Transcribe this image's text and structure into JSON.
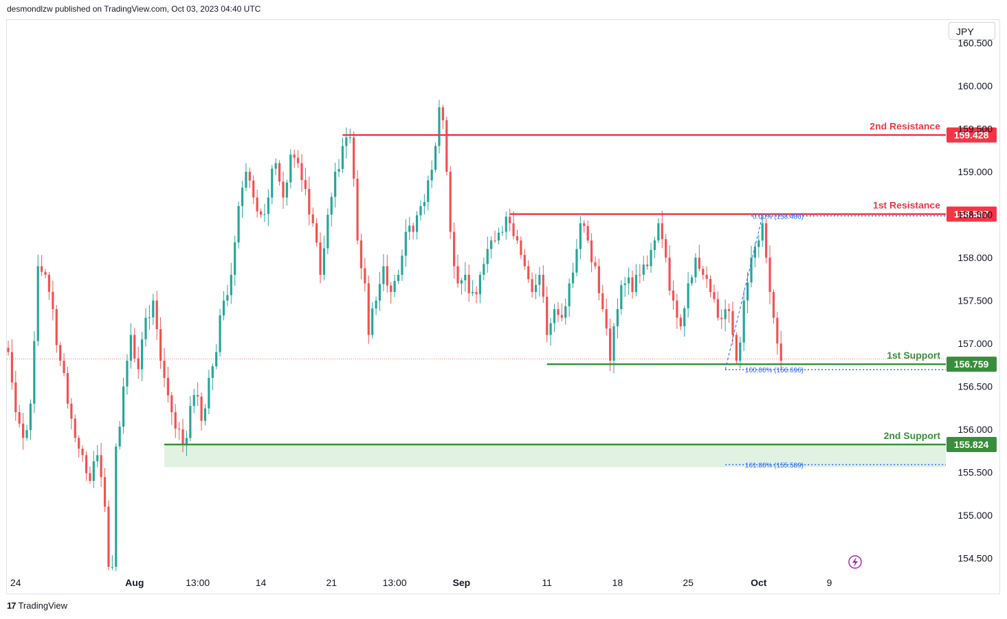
{
  "header": {
    "publisher_text": "desmondlzw published on TradingView.com, Oct 03, 2023 04:40 UTC"
  },
  "currency": "JPY",
  "footer": {
    "brand": "TradingView",
    "logo_icon": "tradingview-logo-icon"
  },
  "colors": {
    "up": "#26a69a",
    "down": "#ef5350",
    "resistance": "#f23645",
    "support": "#388e3c",
    "fib": "#2962ff",
    "zone": "#e1f2e3"
  },
  "chart_data": {
    "type": "candlestick",
    "ylim": [
      154.3,
      160.8
    ],
    "y_ticks": [
      {
        "value": 154.5,
        "label": "154.500"
      },
      {
        "value": 155.0,
        "label": "155.000"
      },
      {
        "value": 155.5,
        "label": "155.500"
      },
      {
        "value": 156.0,
        "label": "156.000"
      },
      {
        "value": 156.5,
        "label": "156.500"
      },
      {
        "value": 157.0,
        "label": "157.000"
      },
      {
        "value": 157.5,
        "label": "157.500"
      },
      {
        "value": 158.0,
        "label": "158.000"
      },
      {
        "value": 158.5,
        "label": "158.500"
      },
      {
        "value": 159.0,
        "label": "159.000"
      },
      {
        "value": 159.5,
        "label": "159.500"
      },
      {
        "value": 160.0,
        "label": "160.000"
      },
      {
        "value": 160.5,
        "label": "160.500"
      }
    ],
    "x_ticks": [
      {
        "index": 2,
        "label": "24",
        "bold": false
      },
      {
        "index": 34,
        "label": "Aug",
        "bold": true
      },
      {
        "index": 51,
        "label": "13:00",
        "bold": false
      },
      {
        "index": 68,
        "label": "14",
        "bold": false
      },
      {
        "index": 87,
        "label": "21",
        "bold": false
      },
      {
        "index": 104,
        "label": "13:00",
        "bold": false
      },
      {
        "index": 122,
        "label": "Sep",
        "bold": true
      },
      {
        "index": 145,
        "label": "11",
        "bold": false
      },
      {
        "index": 164,
        "label": "18",
        "bold": false
      },
      {
        "index": 183,
        "label": "25",
        "bold": false
      },
      {
        "index": 202,
        "label": "Oct",
        "bold": true
      },
      {
        "index": 221,
        "label": "9",
        "bold": false
      }
    ],
    "anchors": [
      [
        0,
        156.9
      ],
      [
        2,
        156.2
      ],
      [
        4,
        155.9
      ],
      [
        6,
        156.3
      ],
      [
        8,
        157.9
      ],
      [
        10,
        157.8
      ],
      [
        12,
        157.4
      ],
      [
        14,
        156.8
      ],
      [
        16,
        156.3
      ],
      [
        18,
        155.9
      ],
      [
        20,
        155.7
      ],
      [
        22,
        155.4
      ],
      [
        24,
        155.7
      ],
      [
        26,
        155.1
      ],
      [
        27,
        154.4
      ],
      [
        28,
        154.4
      ],
      [
        29,
        155.8
      ],
      [
        31,
        156.5
      ],
      [
        33,
        157.1
      ],
      [
        35,
        156.7
      ],
      [
        37,
        157.3
      ],
      [
        39,
        157.5
      ],
      [
        41,
        156.8
      ],
      [
        42,
        156.6
      ],
      [
        44,
        156.2
      ],
      [
        46,
        156.0
      ],
      [
        48,
        155.9
      ],
      [
        50,
        156.4
      ],
      [
        52,
        156.1
      ],
      [
        54,
        156.6
      ],
      [
        56,
        156.9
      ],
      [
        58,
        157.5
      ],
      [
        60,
        157.8
      ],
      [
        62,
        158.6
      ],
      [
        64,
        159.0
      ],
      [
        66,
        158.7
      ],
      [
        68,
        158.5
      ],
      [
        70,
        158.7
      ],
      [
        72,
        159.1
      ],
      [
        74,
        158.7
      ],
      [
        76,
        159.2
      ],
      [
        78,
        159.1
      ],
      [
        80,
        158.8
      ],
      [
        82,
        158.4
      ],
      [
        84,
        157.8
      ],
      [
        86,
        158.5
      ],
      [
        88,
        159.0
      ],
      [
        90,
        159.3
      ],
      [
        91,
        159.4
      ],
      [
        92,
        159.4
      ],
      [
        94,
        158.2
      ],
      [
        96,
        157.7
      ],
      [
        97,
        157.1
      ],
      [
        99,
        157.5
      ],
      [
        101,
        157.9
      ],
      [
        103,
        157.6
      ],
      [
        105,
        157.8
      ],
      [
        107,
        158.3
      ],
      [
        109,
        158.3
      ],
      [
        111,
        158.6
      ],
      [
        113,
        158.9
      ],
      [
        115,
        159.3
      ],
      [
        116,
        159.75
      ],
      [
        117,
        159.6
      ],
      [
        118,
        159.0
      ],
      [
        119,
        158.3
      ],
      [
        120,
        157.9
      ],
      [
        121,
        157.7
      ],
      [
        123,
        157.8
      ],
      [
        125,
        157.6
      ],
      [
        127,
        157.8
      ],
      [
        129,
        158.1
      ],
      [
        131,
        158.2
      ],
      [
        133,
        158.3
      ],
      [
        135,
        158.4
      ],
      [
        137,
        158.2
      ],
      [
        139,
        157.9
      ],
      [
        141,
        157.6
      ],
      [
        143,
        157.8
      ],
      [
        145,
        157.1
      ],
      [
        147,
        157.4
      ],
      [
        149,
        157.3
      ],
      [
        151,
        157.7
      ],
      [
        153,
        158.1
      ],
      [
        154,
        158.4
      ],
      [
        156,
        158.2
      ],
      [
        158,
        157.9
      ],
      [
        160,
        157.4
      ],
      [
        162,
        156.8
      ],
      [
        164,
        157.4
      ],
      [
        166,
        157.7
      ],
      [
        168,
        157.6
      ],
      [
        170,
        157.8
      ],
      [
        172,
        157.9
      ],
      [
        174,
        158.2
      ],
      [
        175,
        158.4
      ],
      [
        177,
        158.0
      ],
      [
        179,
        157.5
      ],
      [
        181,
        157.2
      ],
      [
        183,
        157.7
      ],
      [
        185,
        158.0
      ],
      [
        187,
        157.8
      ],
      [
        189,
        157.6
      ],
      [
        191,
        157.3
      ],
      [
        193,
        157.4
      ],
      [
        195,
        157.1
      ],
      [
        196,
        156.8
      ],
      [
        198,
        157.5
      ],
      [
        200,
        158.0
      ],
      [
        202,
        158.2
      ],
      [
        203,
        158.4
      ],
      [
        204,
        158.0
      ],
      [
        205,
        157.6
      ],
      [
        206,
        157.3
      ],
      [
        207,
        157.0
      ],
      [
        208,
        156.8
      ]
    ],
    "levels": [
      {
        "name": "2nd Resistance",
        "value": 159.428,
        "label": "159.428",
        "kind": "resistance",
        "start_index": 90
      },
      {
        "name": "1st Resistance",
        "value": 158.507,
        "label": "158.507",
        "kind": "resistance",
        "start_index": 135
      },
      {
        "name": "1st Support",
        "value": 156.759,
        "label": "156.759",
        "kind": "support",
        "start_index": 145
      },
      {
        "name": "2nd Support",
        "value": 155.824,
        "label": "155.824",
        "kind": "support",
        "start_index": 42
      }
    ],
    "support_zone": {
      "from": 155.56,
      "to": 155.824,
      "start_index": 42
    },
    "fibonacci": [
      {
        "label": "0.00% (158.486)",
        "value": 158.486,
        "start_index": 200
      },
      {
        "label": "100.00% (156.696)",
        "value": 156.696,
        "start_index": 193
      },
      {
        "label": "161.80% (155.589)",
        "value": 155.589,
        "start_index": 193
      }
    ],
    "last_price": 156.82
  }
}
